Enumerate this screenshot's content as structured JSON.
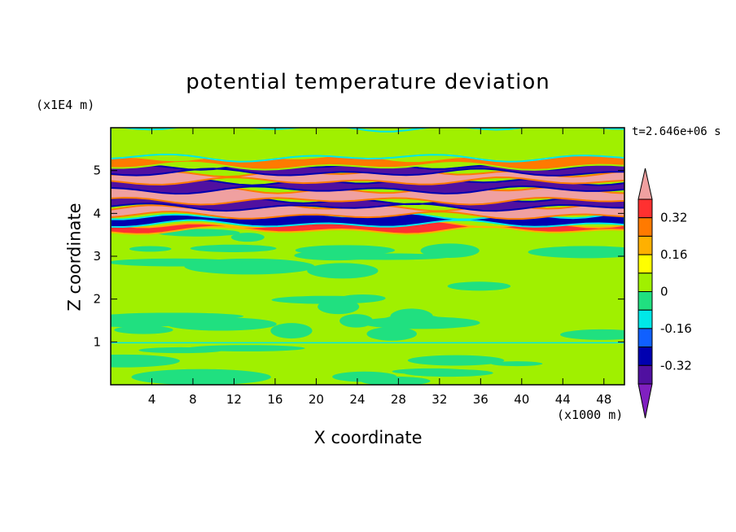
{
  "chart_data": {
    "type": "heatmap",
    "title": "potential temperature deviation",
    "xlabel": "X coordinate",
    "ylabel": "Z coordinate",
    "x_unit": "(x1000 m)",
    "z_unit": "(x1E4 m)",
    "time_label": "t=2.646e+06 s",
    "xlim": [
      0,
      50
    ],
    "ylim": [
      0,
      6
    ],
    "x_ticks": [
      4,
      8,
      12,
      16,
      20,
      24,
      28,
      32,
      36,
      40,
      44,
      48
    ],
    "y_ticks": [
      1,
      2,
      3,
      4,
      5
    ],
    "grid": false,
    "colorbar": {
      "placement": "right",
      "labels": [
        "0.32",
        "0.16",
        "0",
        "-0.16",
        "-0.32"
      ],
      "label_values": [
        0.32,
        0.16,
        0,
        -0.16,
        -0.32
      ],
      "levels_top_to_bottom": [
        0.4,
        0.32,
        0.24,
        0.16,
        0.08,
        0,
        -0.08,
        -0.16,
        -0.24,
        -0.32,
        -0.4
      ],
      "colors_top_to_bottom": [
        "#f0a0a0",
        "#ff3030",
        "#ff7a00",
        "#ffb000",
        "#ffff00",
        "#a0f000",
        "#20e080",
        "#00e8e8",
        "#1060ff",
        "#0000b0",
        "#5010a0",
        "#8020c0"
      ]
    },
    "bands": [
      {
        "z": [
          0.0,
          3.6
        ],
        "value": 0.02,
        "note": "weak mixed 0/-0.08 region"
      },
      {
        "z": [
          3.6,
          3.75
        ],
        "value": 0.32
      },
      {
        "z": [
          3.75,
          3.95
        ],
        "value": -0.32
      },
      {
        "z": [
          3.95,
          4.15
        ],
        "value": 0.4
      },
      {
        "z": [
          4.15,
          4.3
        ],
        "value": -0.4
      },
      {
        "z": [
          4.3,
          4.55
        ],
        "value": 0.4
      },
      {
        "z": [
          4.55,
          4.75
        ],
        "value": -0.4
      },
      {
        "z": [
          4.75,
          4.95
        ],
        "value": 0.4
      },
      {
        "z": [
          4.95,
          5.1
        ],
        "value": -0.4
      },
      {
        "z": [
          5.1,
          5.3
        ],
        "value": 0.24
      },
      {
        "z": [
          5.3,
          6.0
        ],
        "value": 0.04
      }
    ],
    "surface_line": {
      "z": 0.98,
      "value": -0.16
    }
  }
}
